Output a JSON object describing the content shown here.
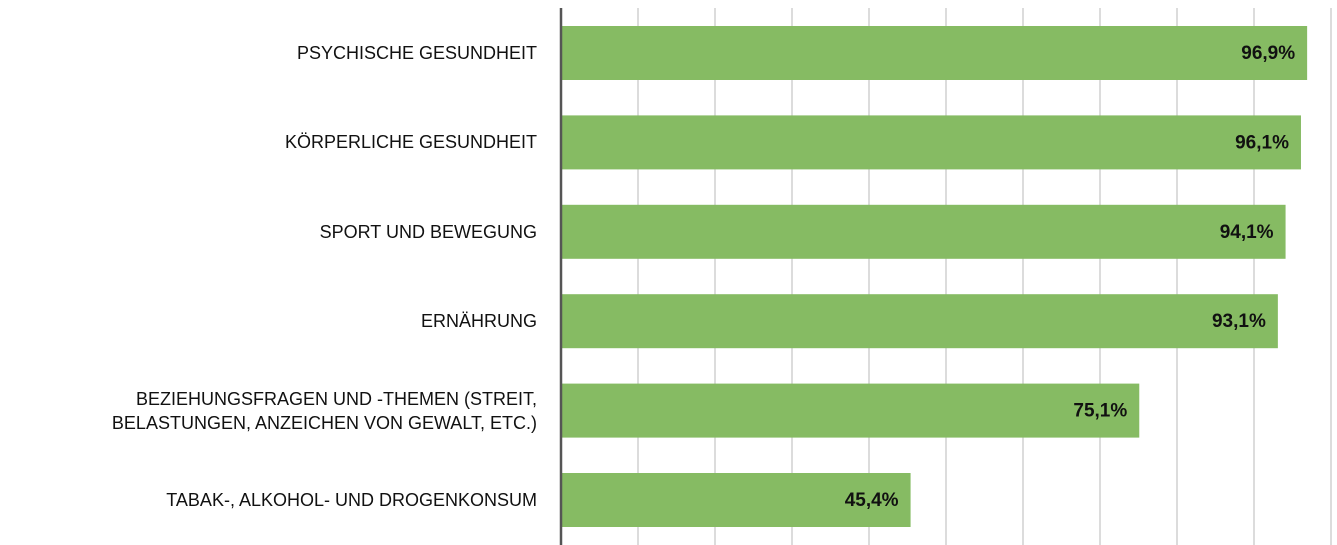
{
  "chart_data": {
    "type": "bar",
    "orientation": "horizontal",
    "categories": [
      "PSYCHISCHE GESUNDHEIT",
      "KÖRPERLICHE GESUNDHEIT",
      "SPORT UND BEWEGUNG",
      "ERNÄHRUNG",
      "BEZIEHUNGSFRAGEN UND -THEMEN (STREIT, BELASTUNGEN, ANZEICHEN VON GEWALT, ETC.)",
      "TABAK-, ALKOHOL- UND DROGENKONSUM"
    ],
    "values": [
      96.9,
      96.1,
      94.1,
      93.1,
      75.1,
      45.4
    ],
    "value_labels": [
      "96,9%",
      "96,1%",
      "94,1%",
      "93,1%",
      "75,1%",
      "45,4%"
    ],
    "color": "#86bb63",
    "xlim": [
      0,
      100
    ],
    "xticks": [
      0,
      10,
      20,
      30,
      40,
      50,
      60,
      70,
      80,
      90,
      100
    ],
    "grid": true
  }
}
